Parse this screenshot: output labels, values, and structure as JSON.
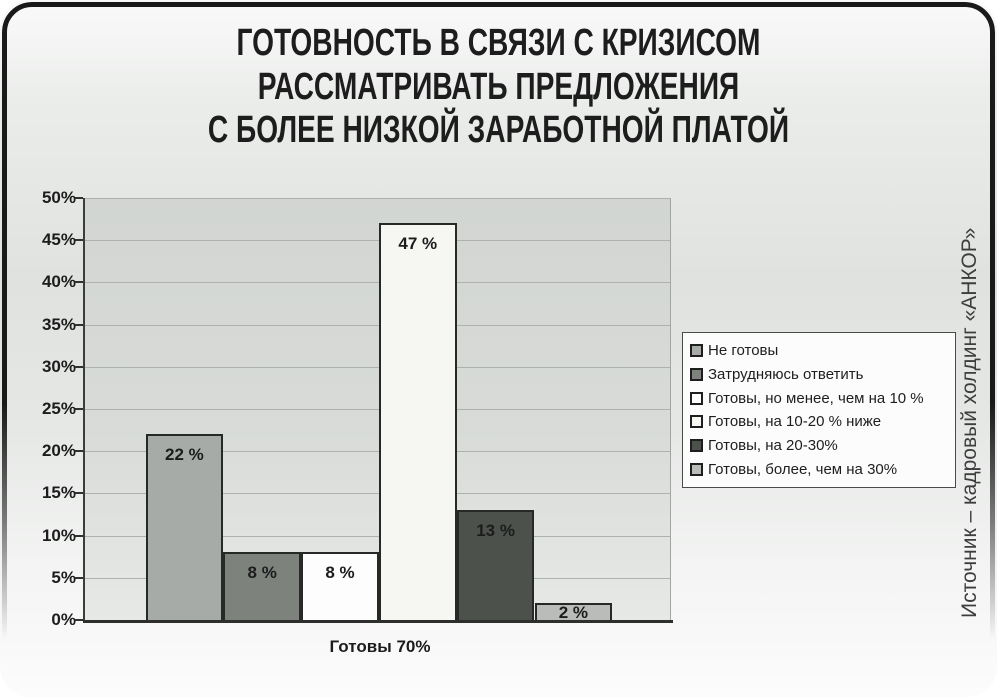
{
  "slide": {
    "title_lines": [
      "ГОТОВНОСТЬ В СВЯЗИ С КРИЗИСОМ",
      "РАССМАТРИВАТЬ ПРЕДЛОЖЕНИЯ",
      "С БОЛЕЕ НИЗКОЙ ЗАРАБОТНОЙ ПЛАТОЙ"
    ],
    "source_note": "Источник – кадровый холдинг «АНКОР»"
  },
  "chart_data": {
    "type": "bar",
    "title": "Готовность в связи с кризисом рассматривать предложения с более низкой заработной платой",
    "categories": [
      "Не готовы",
      "Затрудняюсь ответить",
      "Готовы, но менее, чем на 10 %",
      "Готовы, на 10-20 % ниже",
      "Готовы, на 20-30%",
      "Готовы, более, чем на 30%"
    ],
    "values": [
      22,
      8,
      8,
      47,
      13,
      2
    ],
    "bar_labels": [
      "22 %",
      "8 %",
      "8 %",
      "47 %",
      "13 %",
      "2 %"
    ],
    "bar_colors": [
      "#a7aba7",
      "#7d827d",
      "#fdfdfd",
      "#f6f6f3",
      "#4c514c",
      "#b9bcb8"
    ],
    "bar_border_color": "#262926",
    "xlabel": "Готовы 70%",
    "ylabel": "",
    "ylim": [
      0,
      50
    ],
    "ytick_labels": [
      "0%",
      "5%",
      "10%",
      "15%",
      "20%",
      "25%",
      "30%",
      "35%",
      "40%",
      "45%",
      "50%"
    ],
    "grid": "horizontal",
    "legend_position": "right"
  }
}
